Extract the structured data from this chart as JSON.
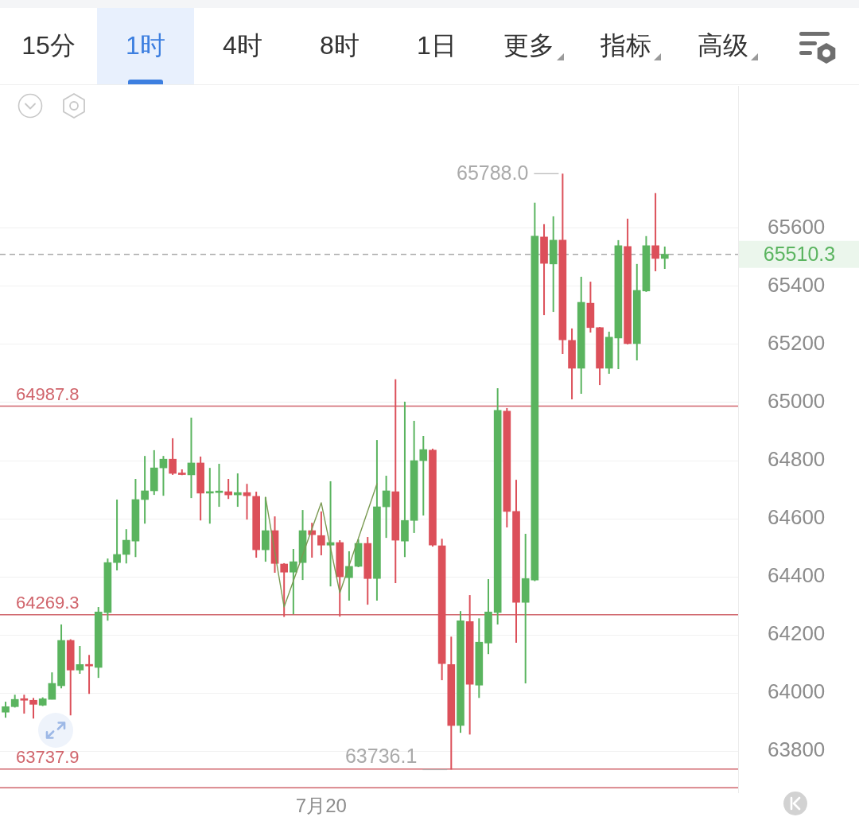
{
  "chart_data": {
    "type": "candlestick",
    "annotations": [
      "15分",
      "1时",
      "4时",
      "8时",
      "1日",
      "更多",
      "指标",
      "高级",
      "65788.0",
      "63736.1"
    ],
    "categories": [
      null,
      null,
      null,
      null,
      null,
      null,
      null,
      null,
      null,
      null,
      null,
      null,
      null,
      null,
      null,
      null,
      null,
      null,
      null,
      null,
      null,
      null,
      null,
      null,
      null,
      null,
      null,
      null,
      null,
      null,
      null,
      null,
      null,
      null,
      "7月20",
      null,
      null,
      null,
      null,
      null,
      null,
      null,
      null,
      null,
      null,
      null,
      null,
      null,
      null,
      null,
      null,
      null,
      null,
      null,
      null,
      null,
      null,
      null,
      null,
      null,
      null,
      null,
      null,
      null,
      null,
      null,
      null,
      null,
      null,
      null,
      null,
      null
    ],
    "ohlc": [
      [
        63934,
        63970,
        63915,
        63953
      ],
      [
        63953,
        63994,
        63950,
        63978
      ],
      [
        63980,
        63994,
        63929,
        63975
      ],
      [
        63975,
        63983,
        63912,
        63961
      ],
      [
        63958,
        63985,
        63955,
        63980
      ],
      [
        63978,
        64071,
        63978,
        64033
      ],
      [
        64025,
        64236,
        64016,
        64181
      ],
      [
        64181,
        64185,
        63923,
        64079
      ],
      [
        64079,
        64162,
        64066,
        64098
      ],
      [
        64098,
        64131,
        63997,
        64093
      ],
      [
        64088,
        64296,
        64052,
        64279
      ],
      [
        64277,
        64463,
        64249,
        64449
      ],
      [
        64449,
        64666,
        64422,
        64477
      ],
      [
        64477,
        64564,
        64446,
        64526
      ],
      [
        64523,
        64737,
        64468,
        64666
      ],
      [
        64666,
        64816,
        64583,
        64696
      ],
      [
        64696,
        64836,
        64682,
        64775
      ],
      [
        64775,
        64816,
        64679,
        64805
      ],
      [
        64805,
        64877,
        64751,
        64756
      ],
      [
        64755,
        64770,
        64750,
        64752
      ],
      [
        64751,
        64948,
        64671,
        64792
      ],
      [
        64792,
        64814,
        64594,
        64688
      ],
      [
        64688,
        64775,
        64583,
        64691
      ],
      [
        64690,
        64789,
        64641,
        64693
      ],
      [
        64693,
        64737,
        64668,
        64682
      ],
      [
        64682,
        64756,
        64641,
        64690
      ],
      [
        64690,
        64720,
        64597,
        64679
      ],
      [
        64677,
        64693,
        64466,
        64493
      ],
      [
        64493,
        64674,
        64452,
        64559
      ],
      [
        64559,
        64608,
        64414,
        64446
      ],
      [
        64444,
        64447,
        64262,
        64416
      ],
      [
        64416,
        64496,
        64271,
        64452
      ],
      [
        64449,
        64630,
        64389,
        64559
      ],
      [
        64559,
        64586,
        64466,
        64545
      ],
      [
        64542,
        64625,
        64474,
        64509
      ],
      [
        64509,
        64729,
        64367,
        64518
      ],
      [
        64518,
        64526,
        64263,
        64400
      ],
      [
        64397,
        64488,
        64318,
        64436
      ],
      [
        64436,
        64529,
        64433,
        64515
      ],
      [
        64515,
        64537,
        64304,
        64394
      ],
      [
        64394,
        64871,
        64318,
        64641
      ],
      [
        64641,
        64748,
        64534,
        64696
      ],
      [
        64693,
        65080,
        64378,
        64526
      ],
      [
        64523,
        65003,
        64468,
        64594
      ],
      [
        64594,
        64937,
        64551,
        64800
      ],
      [
        64800,
        64885,
        64611,
        64838
      ],
      [
        64836,
        64841,
        64504,
        64509
      ],
      [
        64507,
        64531,
        64044,
        64101
      ],
      [
        64098,
        64194,
        63736.1,
        63888
      ],
      [
        63888,
        64282,
        63863,
        64249
      ],
      [
        64246,
        64337,
        63857,
        64030
      ],
      [
        64027,
        64257,
        63983,
        64175
      ],
      [
        64172,
        64392,
        64134,
        64279
      ],
      [
        64277,
        65049,
        64236,
        64973
      ],
      [
        64970,
        64981,
        64570,
        64625
      ],
      [
        64625,
        64734,
        64173,
        64312
      ],
      [
        64312,
        64548,
        64033,
        64394
      ],
      [
        64389,
        65688,
        64385,
        65573
      ],
      [
        65570,
        65614,
        65301,
        65479
      ],
      [
        65477,
        65641,
        65312,
        65559
      ],
      [
        65559,
        65788.0,
        65167,
        65216
      ],
      [
        65214,
        65255,
        65011,
        65118
      ],
      [
        65118,
        65433,
        65030,
        65345
      ],
      [
        65342,
        65416,
        65241,
        65258
      ],
      [
        65258,
        65260,
        65060,
        65118
      ],
      [
        65118,
        65244,
        65099,
        65225
      ],
      [
        65222,
        65559,
        65115,
        65540
      ],
      [
        65537,
        65633,
        65200,
        65203
      ],
      [
        65203,
        65477,
        65145,
        65386
      ],
      [
        65384,
        65573,
        65381,
        65540
      ],
      [
        65540,
        65721,
        65452,
        65496
      ],
      [
        65496,
        65537,
        65460,
        65510.3
      ]
    ],
    "colors": [
      "#5ab45f",
      "#5ab45f",
      "#dc505a",
      "#dc505a",
      "#5ab45f",
      "#5ab45f",
      "#5ab45f",
      "#dc505a",
      "#5ab45f",
      "#dc505a",
      "#5ab45f",
      "#5ab45f",
      "#5ab45f",
      "#5ab45f",
      "#5ab45f",
      "#5ab45f",
      "#5ab45f",
      "#5ab45f",
      "#dc505a",
      "#dc505a",
      "#5ab45f",
      "#dc505a",
      "#5ab45f",
      "#5ab45f",
      "#dc505a",
      "#5ab45f",
      "#dc505a",
      "#dc505a",
      "#5ab45f",
      "#dc505a",
      "#dc505a",
      "#5ab45f",
      "#5ab45f",
      "#dc505a",
      "#dc505a",
      "#5ab45f",
      "#dc505a",
      "#5ab45f",
      "#5ab45f",
      "#dc505a",
      "#5ab45f",
      "#5ab45f",
      "#dc505a",
      "#5ab45f",
      "#5ab45f",
      "#5ab45f",
      "#dc505a",
      "#dc505a",
      "#dc505a",
      "#5ab45f",
      "#dc505a",
      "#5ab45f",
      "#5ab45f",
      "#5ab45f",
      "#dc505a",
      "#dc505a",
      "#5ab45f",
      "#5ab45f",
      "#dc505a",
      "#5ab45f",
      "#dc505a",
      "#dc505a",
      "#5ab45f",
      "#dc505a",
      "#dc505a",
      "#5ab45f",
      "#5ab45f",
      "#dc505a",
      "#5ab45f",
      "#5ab45f",
      "#dc505a",
      "#5ab45f"
    ],
    "series": [
      {
        "type": "line",
        "color": "#7a9a52",
        "values": [
          null,
          null,
          null,
          null,
          null,
          null,
          null,
          null,
          null,
          null,
          null,
          null,
          null,
          null,
          null,
          null,
          null,
          null,
          null,
          null,
          null,
          null,
          null,
          null,
          null,
          null,
          null,
          null,
          64674,
          null,
          64296,
          null,
          null,
          null,
          64655,
          null,
          64345,
          null,
          null,
          null,
          64720,
          null,
          null,
          null,
          null,
          null,
          null,
          null,
          null,
          null,
          null,
          null,
          null,
          null,
          null,
          null,
          null,
          null,
          null,
          null,
          null,
          null,
          null,
          null,
          null,
          null,
          null,
          null,
          null,
          null,
          null,
          null
        ]
      }
    ],
    "ylim": [
      63658,
      66090
    ],
    "yticks": [
      63800,
      64000,
      64200,
      64400,
      64600,
      64800,
      65000,
      65200,
      65400,
      65600
    ],
    "ref_lines": [
      {
        "axis": "y",
        "value": 64987.8,
        "label": "64987.8",
        "color": "#d0646b"
      },
      {
        "axis": "y",
        "value": 64269.3,
        "label": "64269.3",
        "color": "#d0646b"
      },
      {
        "axis": "y",
        "value": 63737.9,
        "label": "63737.9",
        "color": "#d0646b"
      },
      {
        "axis": "y",
        "value": 63674,
        "color": "#d0646b"
      },
      {
        "axis": "y",
        "value": 65510.3,
        "label": "65510.3",
        "color": "#a8a8a8",
        "line_style": "dashed"
      }
    ],
    "grid": "y"
  }
}
